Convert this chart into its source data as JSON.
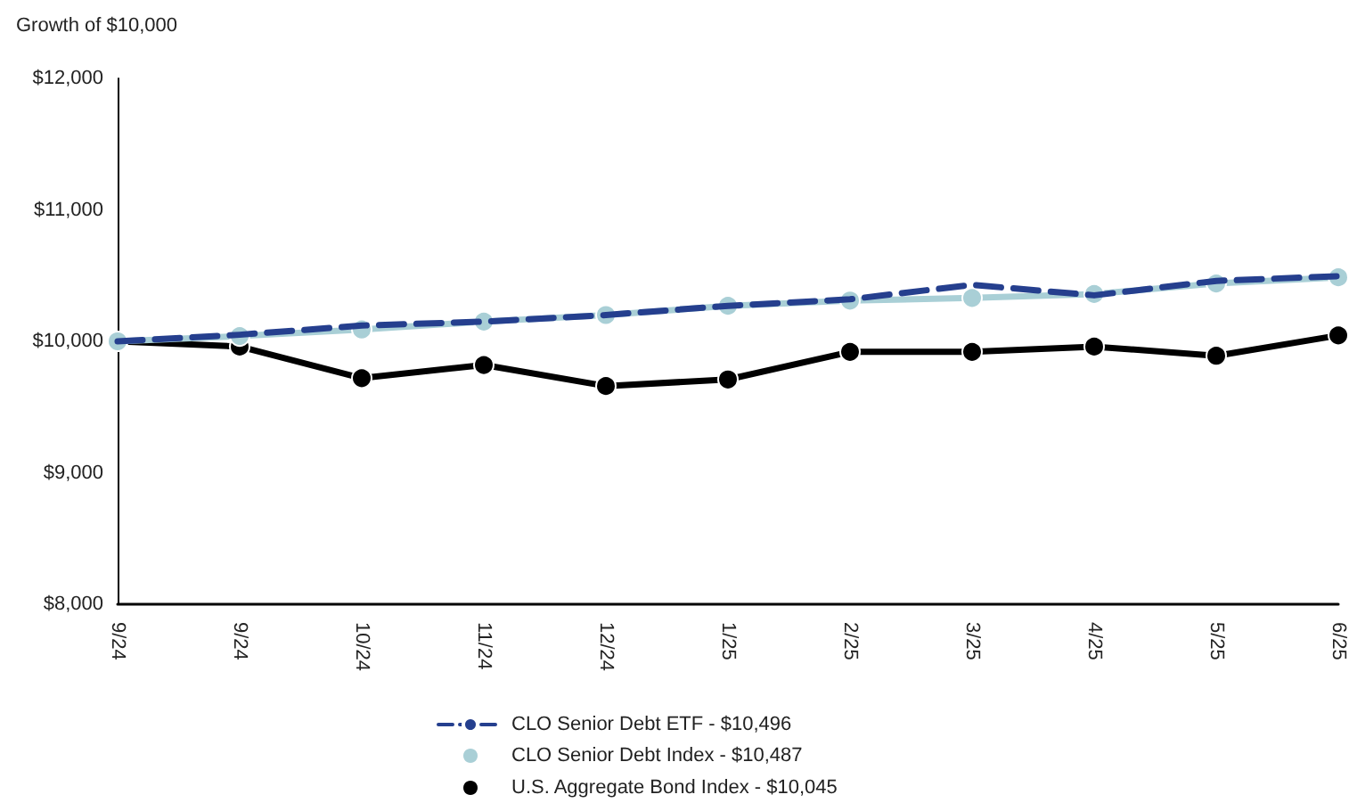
{
  "chart_data": {
    "type": "line",
    "ylabel": "Growth of $10,000",
    "categories": [
      "9/24",
      "9/24",
      "10/24",
      "11/24",
      "12/24",
      "1/25",
      "2/25",
      "3/25",
      "4/25",
      "5/25",
      "6/25"
    ],
    "series": [
      {
        "name": "CLO Senior Debt ETF - $10,496",
        "color": "#253f8e",
        "marker": "none",
        "line_style": "dashed",
        "values": [
          10000,
          10050,
          10120,
          10150,
          10200,
          10270,
          10320,
          10430,
          10350,
          10460,
          10496
        ]
      },
      {
        "name": "CLO Senior Debt Index - $10,487",
        "color": "#a9cfd6",
        "marker": "circle",
        "line_style": "solid",
        "values": [
          10000,
          10040,
          10090,
          10150,
          10200,
          10270,
          10310,
          10330,
          10360,
          10440,
          10487
        ]
      },
      {
        "name": "U.S. Aggregate Bond Index - $10,045",
        "color": "#000000",
        "marker": "circle",
        "line_style": "solid",
        "values": [
          10000,
          9960,
          9720,
          9820,
          9660,
          9710,
          9920,
          9920,
          9960,
          9890,
          10045
        ]
      }
    ],
    "ylim": [
      8000,
      12000
    ],
    "yticks": [
      {
        "value": 8000,
        "label": "$8,000"
      },
      {
        "value": 9000,
        "label": "$9,000"
      },
      {
        "value": 10000,
        "label": "$10,000"
      },
      {
        "value": 11000,
        "label": "$11,000"
      },
      {
        "value": 12000,
        "label": "$12,000"
      }
    ],
    "grid": false,
    "legend": "bottom"
  }
}
